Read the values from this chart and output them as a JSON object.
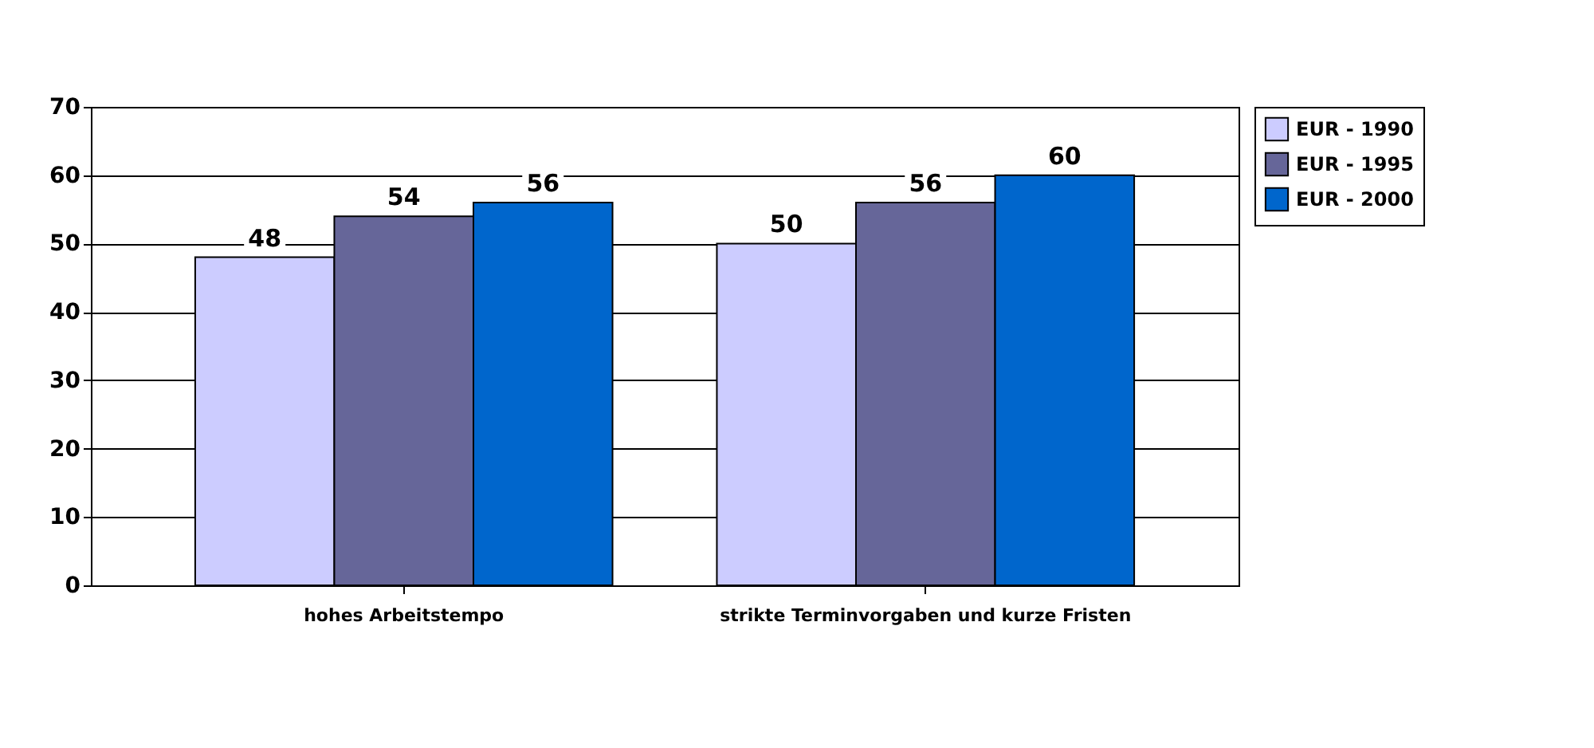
{
  "chart_data": {
    "type": "bar",
    "categories": [
      "hohes Arbeitstempo",
      "strikte Terminvorgaben und kurze Fristen"
    ],
    "series": [
      {
        "name": "EUR - 1990",
        "color": "#ccccff",
        "values": [
          48,
          50
        ]
      },
      {
        "name": "EUR - 1995",
        "color": "#666699",
        "values": [
          54,
          56
        ]
      },
      {
        "name": "EUR - 2000",
        "color": "#0066cc",
        "values": [
          56,
          60
        ]
      }
    ],
    "ylim": [
      0,
      70
    ],
    "yticks": [
      0,
      10,
      20,
      30,
      40,
      50,
      60,
      70
    ],
    "grid": "y",
    "legend": "right",
    "data_labels": true
  }
}
